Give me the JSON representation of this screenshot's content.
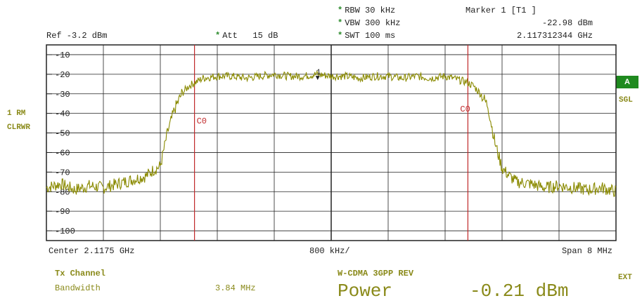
{
  "header": {
    "ref_label": "Ref -3.2 dBm",
    "att_label": "Att   15 dB",
    "rbw_label": "RBW 30 kHz",
    "vbw_label": "VBW 300 kHz",
    "swt_label": "SWT 100 ms",
    "star": "*",
    "marker_title": "Marker 1 [T1 ]",
    "marker_level": "-22.98 dBm",
    "marker_freq": "2.117312344 GHz"
  },
  "side": {
    "trace_mode_1": "1 RM",
    "trace_mode_2": "CLRWR",
    "badge_a": "A",
    "sgl": "SGL",
    "ext": "EXT"
  },
  "footer": {
    "center": "Center 2.1175 GHz",
    "div": "800 kHz/",
    "span": "Span 8 MHz"
  },
  "results": {
    "tx_channel_label": "Tx Channel",
    "bandwidth_label": "Bandwidth",
    "bandwidth_value": "3.84 MHz",
    "standard": "W-CDMA 3GPP REV",
    "power_label": "Power",
    "power_value": "-0.21 dBm"
  },
  "chart_data": {
    "type": "line",
    "xlabel": "",
    "ylabel": "",
    "x_unit": "MHz offset from center",
    "xlim": [
      -4,
      4
    ],
    "ylim": [
      -105,
      -5
    ],
    "y_ticks": [
      "-10",
      "-20",
      "-30",
      "-40",
      "-50",
      "-60",
      "-70",
      "-80",
      "-90",
      "-100"
    ],
    "grid": true,
    "marker_label": "1",
    "marker_x": -0.19,
    "marker_y": -22.98,
    "channel_lines": [
      {
        "label": "C0",
        "x": -1.92
      },
      {
        "label": "C0",
        "x": 1.92
      }
    ],
    "series": [
      {
        "color": "#8a8a00",
        "x": [
          -4.0,
          -3.8,
          -3.6,
          -3.4,
          -3.2,
          -3.0,
          -2.8,
          -2.6,
          -2.5,
          -2.4,
          -2.3,
          -2.2,
          -2.1,
          -2.0,
          -1.9,
          -1.8,
          -1.6,
          -1.4,
          -1.2,
          -1.0,
          -0.8,
          -0.6,
          -0.4,
          -0.2,
          0.0,
          0.2,
          0.4,
          0.6,
          0.8,
          1.0,
          1.2,
          1.4,
          1.6,
          1.8,
          1.9,
          2.0,
          2.1,
          2.2,
          2.3,
          2.4,
          2.5,
          2.6,
          2.8,
          3.0,
          3.2,
          3.4,
          3.6,
          3.8,
          4.0
        ],
        "y": [
          -78,
          -76,
          -79,
          -77,
          -78,
          -76,
          -74,
          -72,
          -69,
          -67,
          -50,
          -38,
          -30,
          -26,
          -24,
          -22,
          -21,
          -21,
          -22,
          -21,
          -20,
          -21,
          -21,
          -20,
          -21,
          -21,
          -22,
          -21,
          -21,
          -22,
          -21,
          -22,
          -21,
          -23,
          -24,
          -26,
          -30,
          -36,
          -55,
          -68,
          -72,
          -75,
          -76,
          -78,
          -77,
          -78,
          -79,
          -78,
          -80
        ]
      }
    ]
  }
}
